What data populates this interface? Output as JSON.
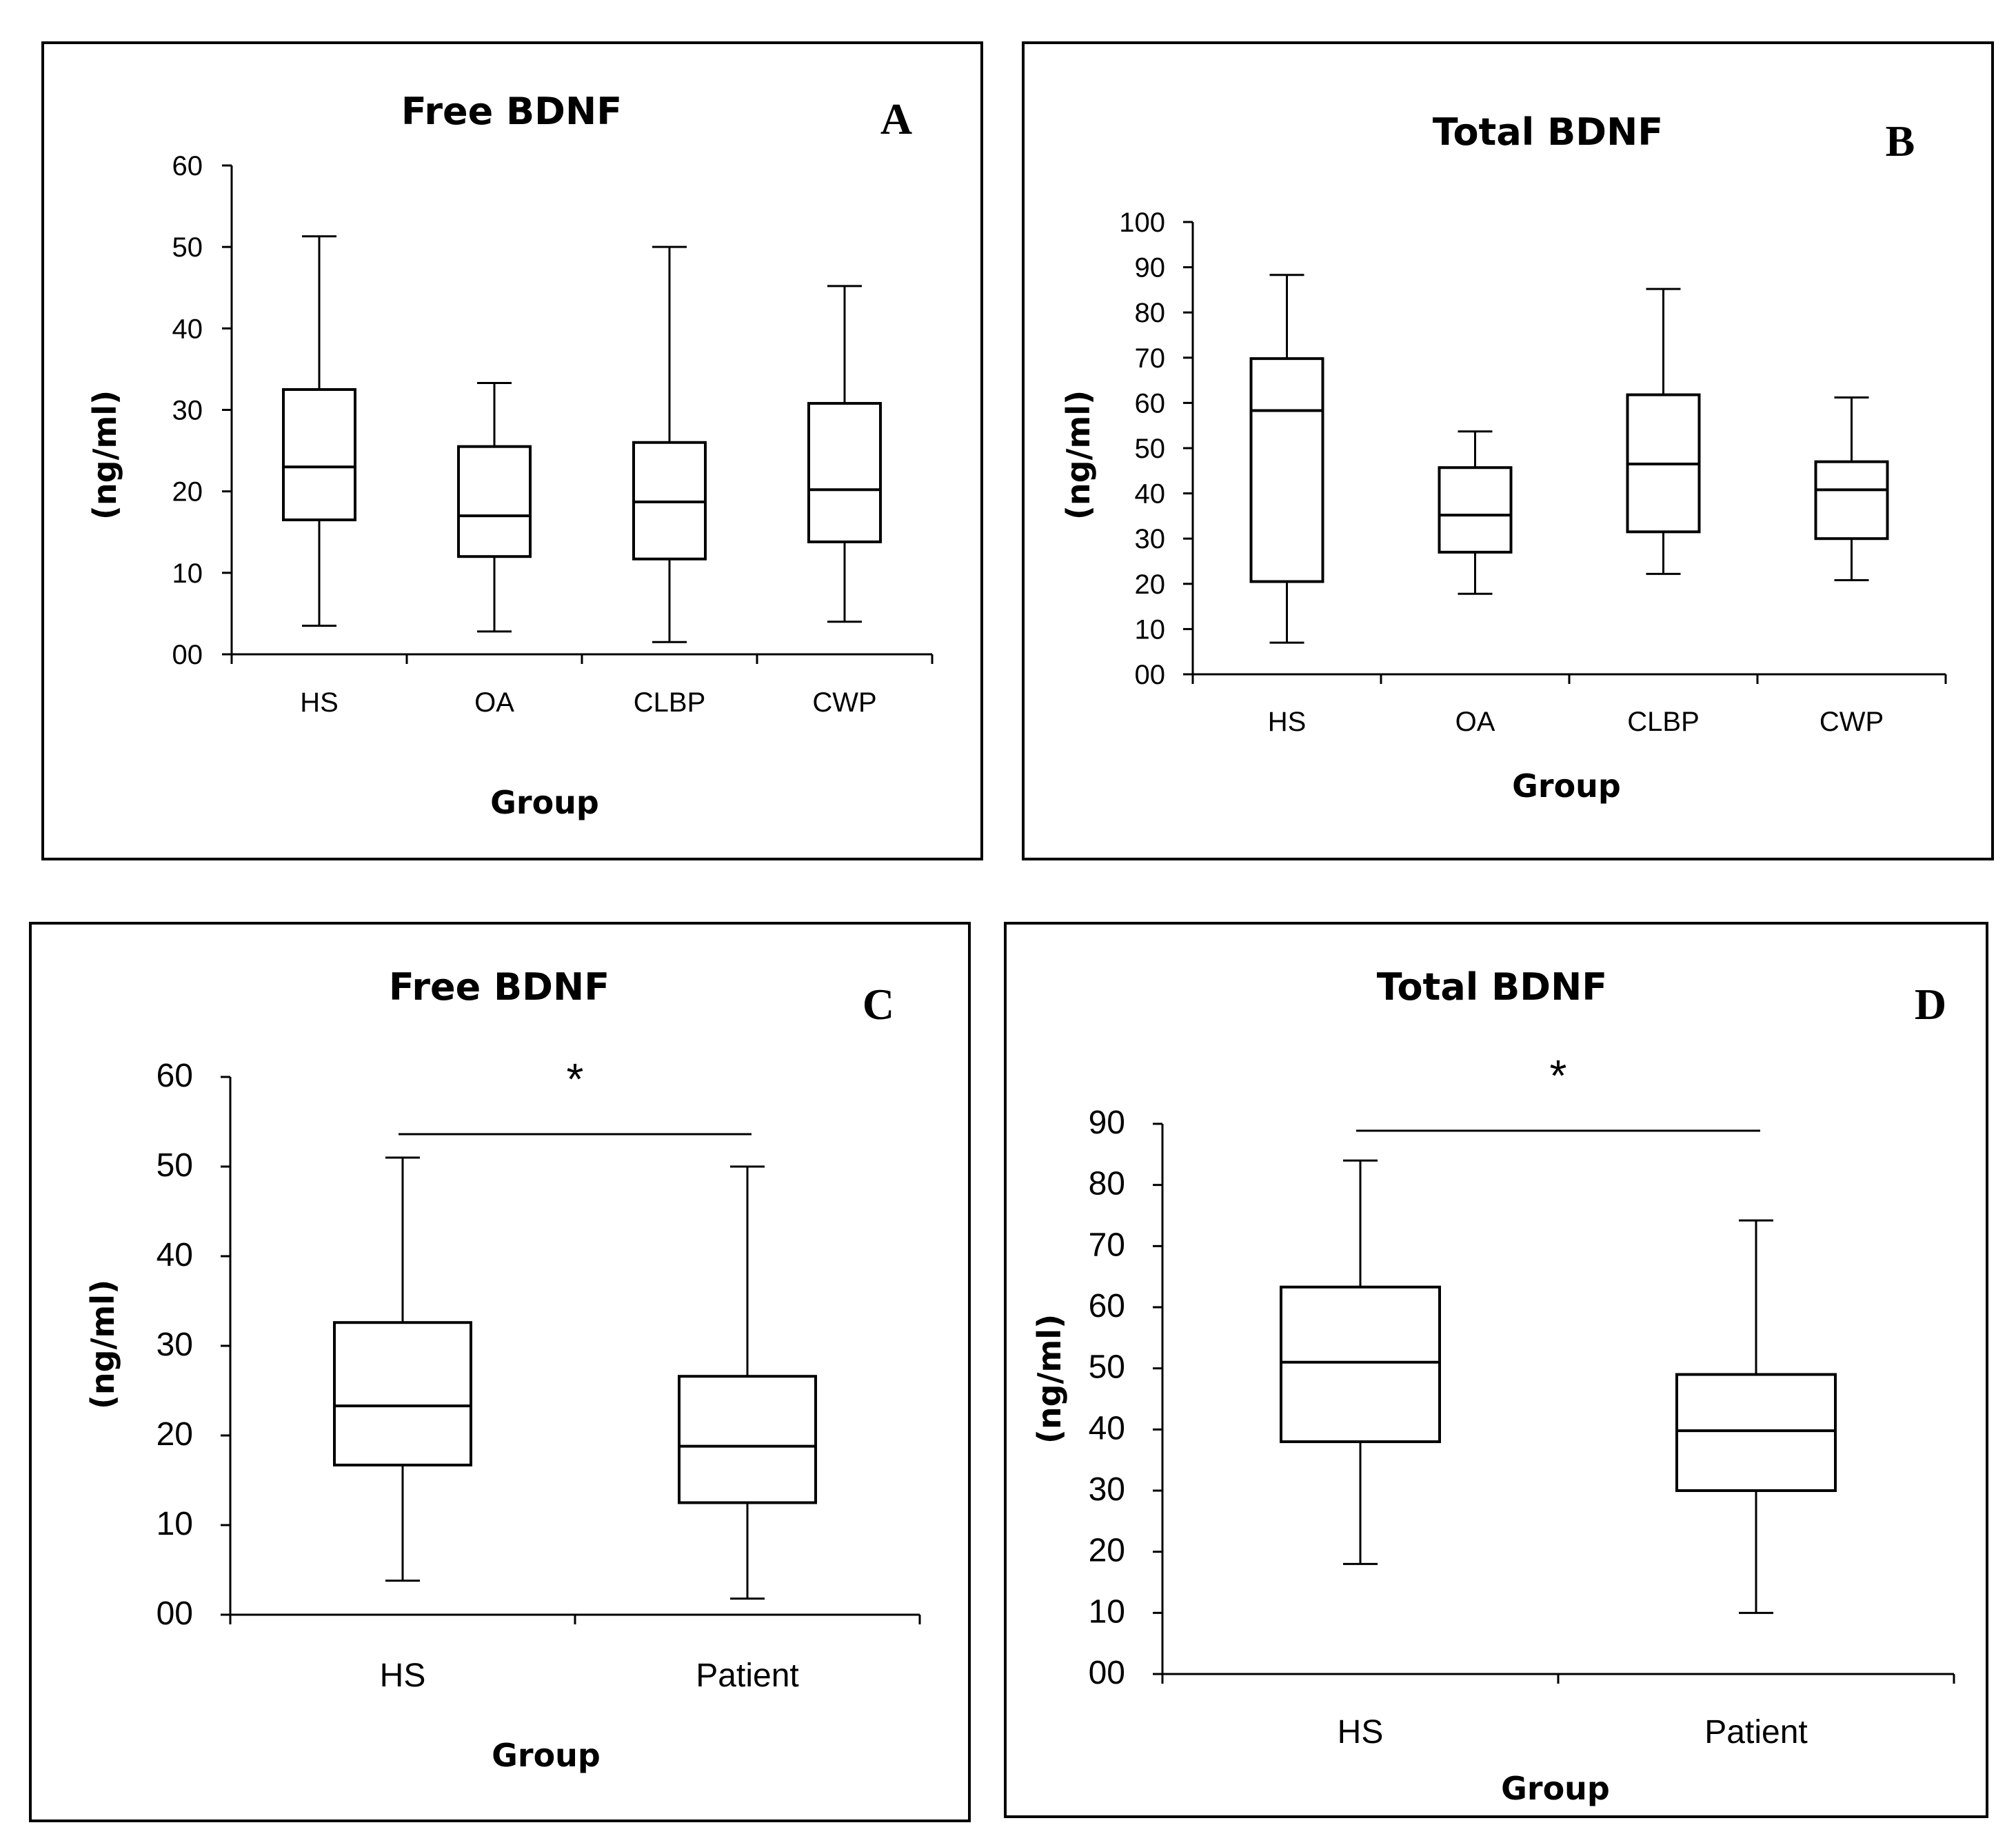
{
  "chart_data": [
    {
      "type": "box",
      "panel": "A",
      "title": "Free BDNF",
      "xlabel": "Group",
      "ylabel": "(ng/ml)",
      "ylim": [
        0,
        60
      ],
      "yticks": [
        "00",
        "10",
        "20",
        "30",
        "40",
        "50",
        "60"
      ],
      "categories": [
        "HS",
        "OA",
        "CLBP",
        "CWP"
      ],
      "boxes": [
        {
          "min": 3.5,
          "q1": 16.5,
          "median": 23.0,
          "q3": 32.5,
          "max": 51.3
        },
        {
          "min": 2.8,
          "q1": 12.0,
          "median": 17.0,
          "q3": 25.5,
          "max": 33.3
        },
        {
          "min": 1.5,
          "q1": 11.7,
          "median": 18.7,
          "q3": 26.0,
          "max": 50.0
        },
        {
          "min": 4.0,
          "q1": 13.8,
          "median": 20.2,
          "q3": 30.8,
          "max": 45.2
        }
      ],
      "significance": null
    },
    {
      "type": "box",
      "panel": "B",
      "title": "Total BDNF",
      "xlabel": "Group",
      "ylabel": "(ng/ml)",
      "ylim": [
        0,
        100
      ],
      "yticks": [
        "00",
        "10",
        "20",
        "30",
        "40",
        "50",
        "60",
        "70",
        "80",
        "90",
        "100"
      ],
      "categories": [
        "HS",
        "OA",
        "CLBP",
        "CWP"
      ],
      "boxes": [
        {
          "min": 7.0,
          "q1": 20.5,
          "median": 58.3,
          "q3": 69.8,
          "max": 88.3
        },
        {
          "min": 17.8,
          "q1": 27.0,
          "median": 35.2,
          "q3": 45.7,
          "max": 53.7
        },
        {
          "min": 22.2,
          "q1": 31.5,
          "median": 46.5,
          "q3": 61.8,
          "max": 85.2
        },
        {
          "min": 20.8,
          "q1": 30.0,
          "median": 40.8,
          "q3": 47.0,
          "max": 61.2
        }
      ],
      "significance": null
    },
    {
      "type": "box",
      "panel": "C",
      "title": "Free BDNF",
      "xlabel": "Group",
      "ylabel": "(ng/ml)",
      "ylim": [
        0,
        60
      ],
      "yticks": [
        "00",
        "10",
        "20",
        "30",
        "40",
        "50",
        "60"
      ],
      "categories": [
        "HS",
        "Patient"
      ],
      "boxes": [
        {
          "min": 3.8,
          "q1": 16.7,
          "median": 23.3,
          "q3": 32.6,
          "max": 51.0
        },
        {
          "min": 1.8,
          "q1": 12.5,
          "median": 18.8,
          "q3": 26.6,
          "max": 50.0
        }
      ],
      "significance": {
        "label": "*",
        "between": [
          "HS",
          "Patient"
        ]
      }
    },
    {
      "type": "box",
      "panel": "D",
      "title": "Total BDNF",
      "xlabel": "Group",
      "ylabel": "(ng/ml)",
      "ylim": [
        0,
        90
      ],
      "yticks": [
        "00",
        "10",
        "20",
        "30",
        "40",
        "50",
        "60",
        "70",
        "80",
        "90"
      ],
      "categories": [
        "HS",
        "Patient"
      ],
      "boxes": [
        {
          "min": 18.0,
          "q1": 38.0,
          "median": 51.0,
          "q3": 63.3,
          "max": 84.0
        },
        {
          "min": 10.0,
          "q1": 30.0,
          "median": 39.8,
          "q3": 49.0,
          "max": 74.2
        }
      ],
      "significance": {
        "label": "*",
        "between": [
          "HS",
          "Patient"
        ]
      }
    }
  ]
}
